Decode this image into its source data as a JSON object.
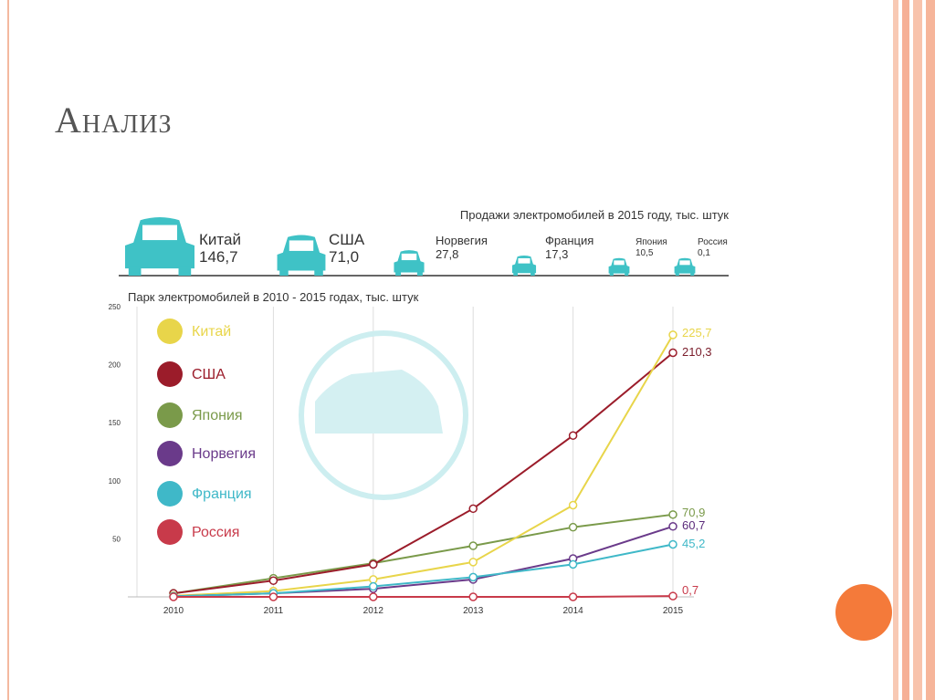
{
  "slide": {
    "title": "Анализ"
  },
  "chart_data": [
    {
      "type": "bar",
      "title": "Продажи электромобилей в 2015 году, тыс. штук",
      "categories": [
        "Китай",
        "США",
        "Норвегия",
        "Франция",
        "Япония",
        "Россия"
      ],
      "values": [
        146.7,
        71.0,
        27.8,
        17.3,
        10.5,
        0.1
      ],
      "value_labels": [
        "146,7",
        "71,0",
        "27,8",
        "17,3",
        "10,5",
        "0,1"
      ]
    },
    {
      "type": "line",
      "title": "Парк электромобилей в 2010 - 2015 годах, тыс. штук",
      "x": [
        2010,
        2011,
        2012,
        2013,
        2014,
        2015
      ],
      "xticks": [
        "2010",
        "2011",
        "2012",
        "2013",
        "2014",
        "2015"
      ],
      "yticks": [
        "250",
        "200",
        "150",
        "100",
        "50"
      ],
      "ylim": [
        0,
        250
      ],
      "grid": true,
      "legend": "left",
      "series": [
        {
          "name": "Китай",
          "color": "#e8d54a",
          "values": [
            1,
            5,
            15,
            30,
            79,
            225.7
          ],
          "end_label": "225,7"
        },
        {
          "name": "США",
          "color": "#9b1c2a",
          "values": [
            3,
            14,
            28,
            76,
            139,
            210.3
          ],
          "end_label": "210,3"
        },
        {
          "name": "Япония",
          "color": "#7a9a4a",
          "values": [
            3,
            16,
            29,
            44,
            60,
            70.9
          ],
          "end_label": "70,9"
        },
        {
          "name": "Норвегия",
          "color": "#6a3a8a",
          "values": [
            0.5,
            3,
            7,
            15,
            33,
            60.7
          ],
          "end_label": "60,7"
        },
        {
          "name": "Франция",
          "color": "#3fb8c8",
          "values": [
            0.5,
            3,
            9,
            17,
            28,
            45.2
          ],
          "end_label": "45,2"
        },
        {
          "name": "Россия",
          "color": "#c83a4a",
          "values": [
            0,
            0,
            0,
            0,
            0,
            0.7
          ],
          "end_label": "0,7"
        }
      ]
    }
  ]
}
